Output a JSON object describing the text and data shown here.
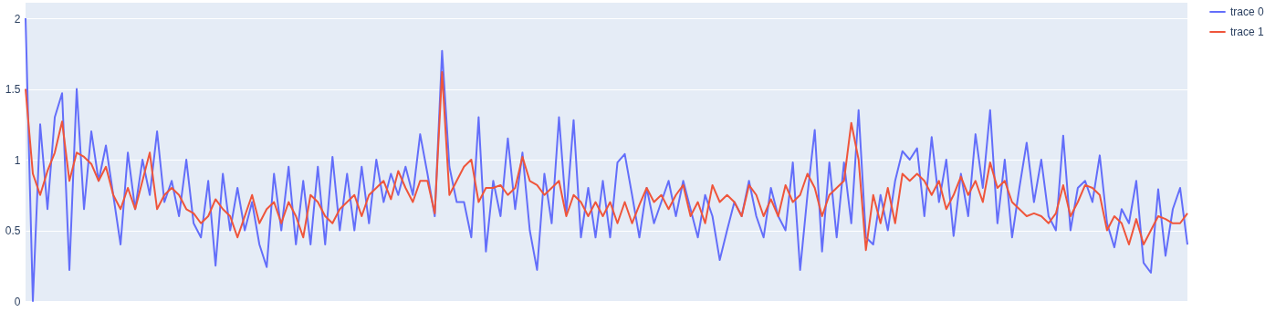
{
  "chart_data": {
    "type": "line",
    "ylim": [
      0,
      2.11
    ],
    "yticks": [
      0,
      0.5,
      1,
      1.5,
      2
    ],
    "grid": "y",
    "legend": "top right",
    "tick_labels": "y",
    "categories": [
      null,
      null,
      null,
      null,
      null,
      null,
      null,
      null,
      null,
      null,
      null,
      null,
      null,
      null,
      null,
      null,
      null,
      null,
      null,
      null,
      null,
      null,
      null,
      null,
      null,
      null,
      null,
      null,
      null,
      null,
      null,
      null,
      null,
      null,
      null,
      null,
      null,
      null,
      null,
      null,
      null,
      null,
      null,
      null,
      null,
      null,
      null,
      null,
      null,
      null,
      null,
      null,
      null,
      null,
      null,
      null,
      null,
      null,
      null,
      null,
      null,
      null,
      null,
      null,
      null,
      null,
      null,
      null,
      null,
      null,
      null,
      null,
      null,
      null,
      null,
      null,
      null,
      null,
      null,
      null,
      null,
      null,
      null,
      null,
      null,
      null,
      null,
      null,
      null,
      null,
      null,
      null,
      null,
      null,
      null,
      null,
      null,
      null,
      null,
      null,
      null,
      null,
      null,
      null,
      null,
      null,
      null,
      null,
      null,
      null,
      null,
      null,
      null,
      null,
      null,
      null,
      null,
      null,
      null,
      null,
      null,
      null,
      null,
      null,
      null,
      null,
      null,
      null,
      null,
      null,
      null,
      null,
      null,
      null,
      null,
      null,
      null,
      null,
      null,
      null,
      null,
      null,
      null,
      null,
      null,
      null,
      null,
      null,
      null,
      null,
      null,
      null,
      null,
      null,
      null,
      null,
      null,
      null,
      null,
      null
    ],
    "series": [
      {
        "name": "trace 0",
        "color": "#636efa",
        "values": [
          2.0,
          0.0,
          1.25,
          0.65,
          1.3,
          1.47,
          0.22,
          1.5,
          0.65,
          1.2,
          0.85,
          1.1,
          0.75,
          0.4,
          1.05,
          0.65,
          1.0,
          0.75,
          1.2,
          0.7,
          0.85,
          0.6,
          1.0,
          0.55,
          0.45,
          0.85,
          0.25,
          0.9,
          0.5,
          0.8,
          0.5,
          0.7,
          0.4,
          0.24,
          0.9,
          0.5,
          0.95,
          0.4,
          0.85,
          0.4,
          0.95,
          0.4,
          1.02,
          0.5,
          0.9,
          0.5,
          0.95,
          0.55,
          1.0,
          0.7,
          0.9,
          0.75,
          0.95,
          0.75,
          1.18,
          0.9,
          0.6,
          1.77,
          0.95,
          0.7,
          0.7,
          0.45,
          1.3,
          0.35,
          0.85,
          0.6,
          1.15,
          0.65,
          1.05,
          0.5,
          0.22,
          0.9,
          0.55,
          1.3,
          0.62,
          1.28,
          0.45,
          0.8,
          0.45,
          0.85,
          0.45,
          0.98,
          1.04,
          0.75,
          0.45,
          0.8,
          0.55,
          0.7,
          0.85,
          0.6,
          0.85,
          0.65,
          0.45,
          0.75,
          0.6,
          0.29,
          0.5,
          0.7,
          0.6,
          0.85,
          0.6,
          0.45,
          0.8,
          0.6,
          0.5,
          0.98,
          0.22,
          0.75,
          1.21,
          0.35,
          0.98,
          0.45,
          0.98,
          0.55,
          1.35,
          0.45,
          0.4,
          0.75,
          0.5,
          0.85,
          1.06,
          1.0,
          1.08,
          0.6,
          1.16,
          0.7,
          1.0,
          0.46,
          0.9,
          0.6,
          1.18,
          0.8,
          1.35,
          0.55,
          1.0,
          0.45,
          0.8,
          1.12,
          0.7,
          1.0,
          0.6,
          0.5,
          1.17,
          0.5,
          0.8,
          0.85,
          0.7,
          1.03,
          0.55,
          0.38,
          0.65,
          0.55,
          0.85,
          0.27,
          0.2,
          0.79,
          0.32,
          0.65,
          0.8,
          0.4
        ]
      },
      {
        "name": "trace 1",
        "color": "#ef553b",
        "values": [
          1.5,
          0.9,
          0.75,
          0.92,
          1.05,
          1.27,
          0.85,
          1.05,
          1.02,
          0.97,
          0.85,
          0.95,
          0.75,
          0.65,
          0.8,
          0.65,
          0.85,
          1.05,
          0.65,
          0.75,
          0.8,
          0.75,
          0.65,
          0.62,
          0.55,
          0.6,
          0.72,
          0.65,
          0.6,
          0.45,
          0.6,
          0.75,
          0.55,
          0.65,
          0.7,
          0.55,
          0.7,
          0.6,
          0.45,
          0.75,
          0.7,
          0.6,
          0.55,
          0.65,
          0.7,
          0.75,
          0.6,
          0.75,
          0.8,
          0.85,
          0.72,
          0.92,
          0.8,
          0.7,
          0.85,
          0.85,
          0.62,
          1.62,
          0.75,
          0.85,
          0.95,
          1.0,
          0.7,
          0.8,
          0.8,
          0.82,
          0.75,
          0.8,
          1.02,
          0.85,
          0.82,
          0.75,
          0.8,
          0.85,
          0.6,
          0.75,
          0.7,
          0.6,
          0.7,
          0.6,
          0.7,
          0.55,
          0.7,
          0.55,
          0.68,
          0.8,
          0.7,
          0.75,
          0.65,
          0.75,
          0.82,
          0.6,
          0.7,
          0.55,
          0.82,
          0.7,
          0.75,
          0.7,
          0.6,
          0.82,
          0.75,
          0.6,
          0.72,
          0.6,
          0.82,
          0.7,
          0.75,
          0.9,
          0.8,
          0.6,
          0.75,
          0.8,
          0.85,
          1.26,
          1.0,
          0.36,
          0.75,
          0.55,
          0.8,
          0.55,
          0.9,
          0.85,
          0.9,
          0.85,
          0.75,
          0.85,
          0.65,
          0.75,
          0.88,
          0.75,
          0.85,
          0.7,
          0.98,
          0.8,
          0.85,
          0.7,
          0.65,
          0.6,
          0.62,
          0.6,
          0.55,
          0.62,
          0.82,
          0.6,
          0.7,
          0.82,
          0.8,
          0.75,
          0.5,
          0.6,
          0.55,
          0.4,
          0.58,
          0.4,
          0.5,
          0.6,
          0.58,
          0.55,
          0.55,
          0.62
        ]
      }
    ]
  }
}
